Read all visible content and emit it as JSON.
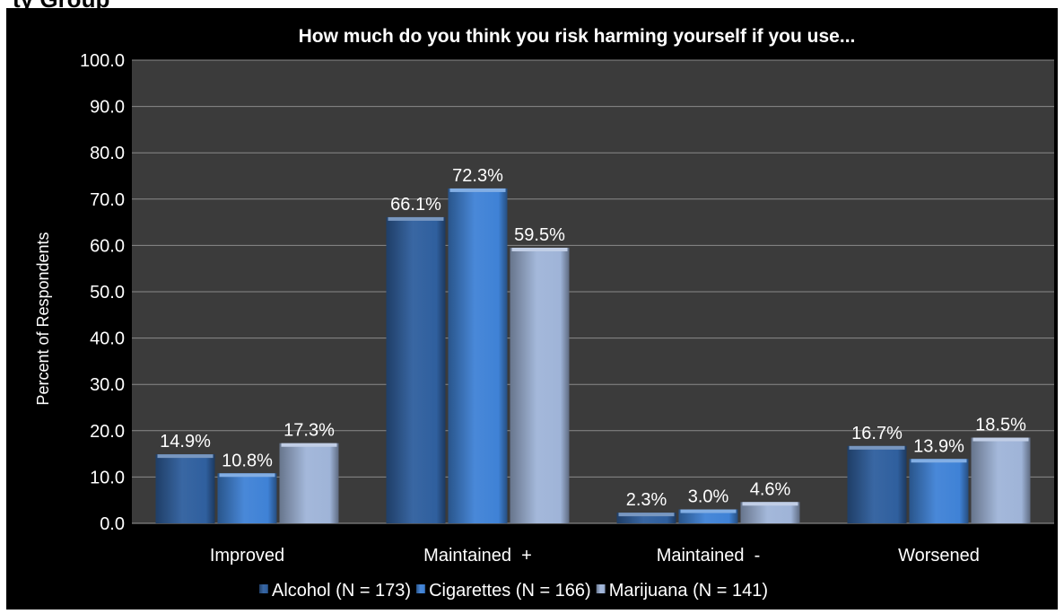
{
  "page": {
    "cut_title": "ty Group"
  },
  "chart_data": {
    "type": "bar",
    "title": "How much do you think you risk harming yourself if you use...",
    "ylabel": "Percent of Respondents",
    "xlabel": "",
    "ylim": [
      0,
      100
    ],
    "yticks": [
      "0.0",
      "10.0",
      "20.0",
      "30.0",
      "40.0",
      "50.0",
      "60.0",
      "70.0",
      "80.0",
      "90.0",
      "100.0"
    ],
    "grid": true,
    "legend_position": "bottom",
    "categories": [
      "Improved",
      "Maintained  +",
      "Maintained  -",
      "Worsened"
    ],
    "series": [
      {
        "name": "Alcohol (N = 173)",
        "values": [
          14.9,
          66.1,
          2.3,
          16.7
        ],
        "labels": [
          "14.9%",
          "66.1%",
          "2.3%",
          "16.7%"
        ],
        "color": "#2f5f9e"
      },
      {
        "name": "Cigarettes (N = 166)",
        "values": [
          10.8,
          72.3,
          3.0,
          13.9
        ],
        "labels": [
          "10.8%",
          "72.3%",
          "3.0%",
          "13.9%"
        ],
        "color": "#3f82d6"
      },
      {
        "name": "Marijuana (N = 141)",
        "values": [
          17.3,
          59.5,
          4.6,
          18.5
        ],
        "labels": [
          "17.3%",
          "59.5%",
          "4.6%",
          "18.5%"
        ],
        "color": "#9fb4d8"
      }
    ]
  }
}
